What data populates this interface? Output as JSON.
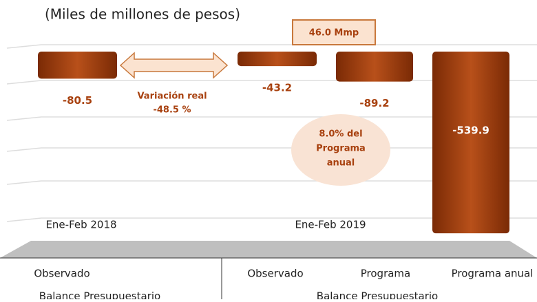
{
  "chart_data": {
    "type": "bar",
    "subtitle": "(Miles de millones de pesos)",
    "categories": [
      "Observado",
      "Observado",
      "Programa",
      "Programa anual"
    ],
    "values": [
      -80.5,
      -43.2,
      -89.2,
      -539.9
    ],
    "color": "#a8410f",
    "ylim": [
      -560,
      0
    ],
    "groups": [
      {
        "label": "Ene-Feb 2018",
        "sublabel": "Balance Presupuestario"
      },
      {
        "label": "Ene-Feb 2019",
        "sublabel": "Balance Presupuestario"
      }
    ],
    "annotations": [
      "Variación real",
      "-48.5 %",
      "46.0 Mmp",
      "8.0% del",
      "Programa",
      "anual"
    ]
  }
}
